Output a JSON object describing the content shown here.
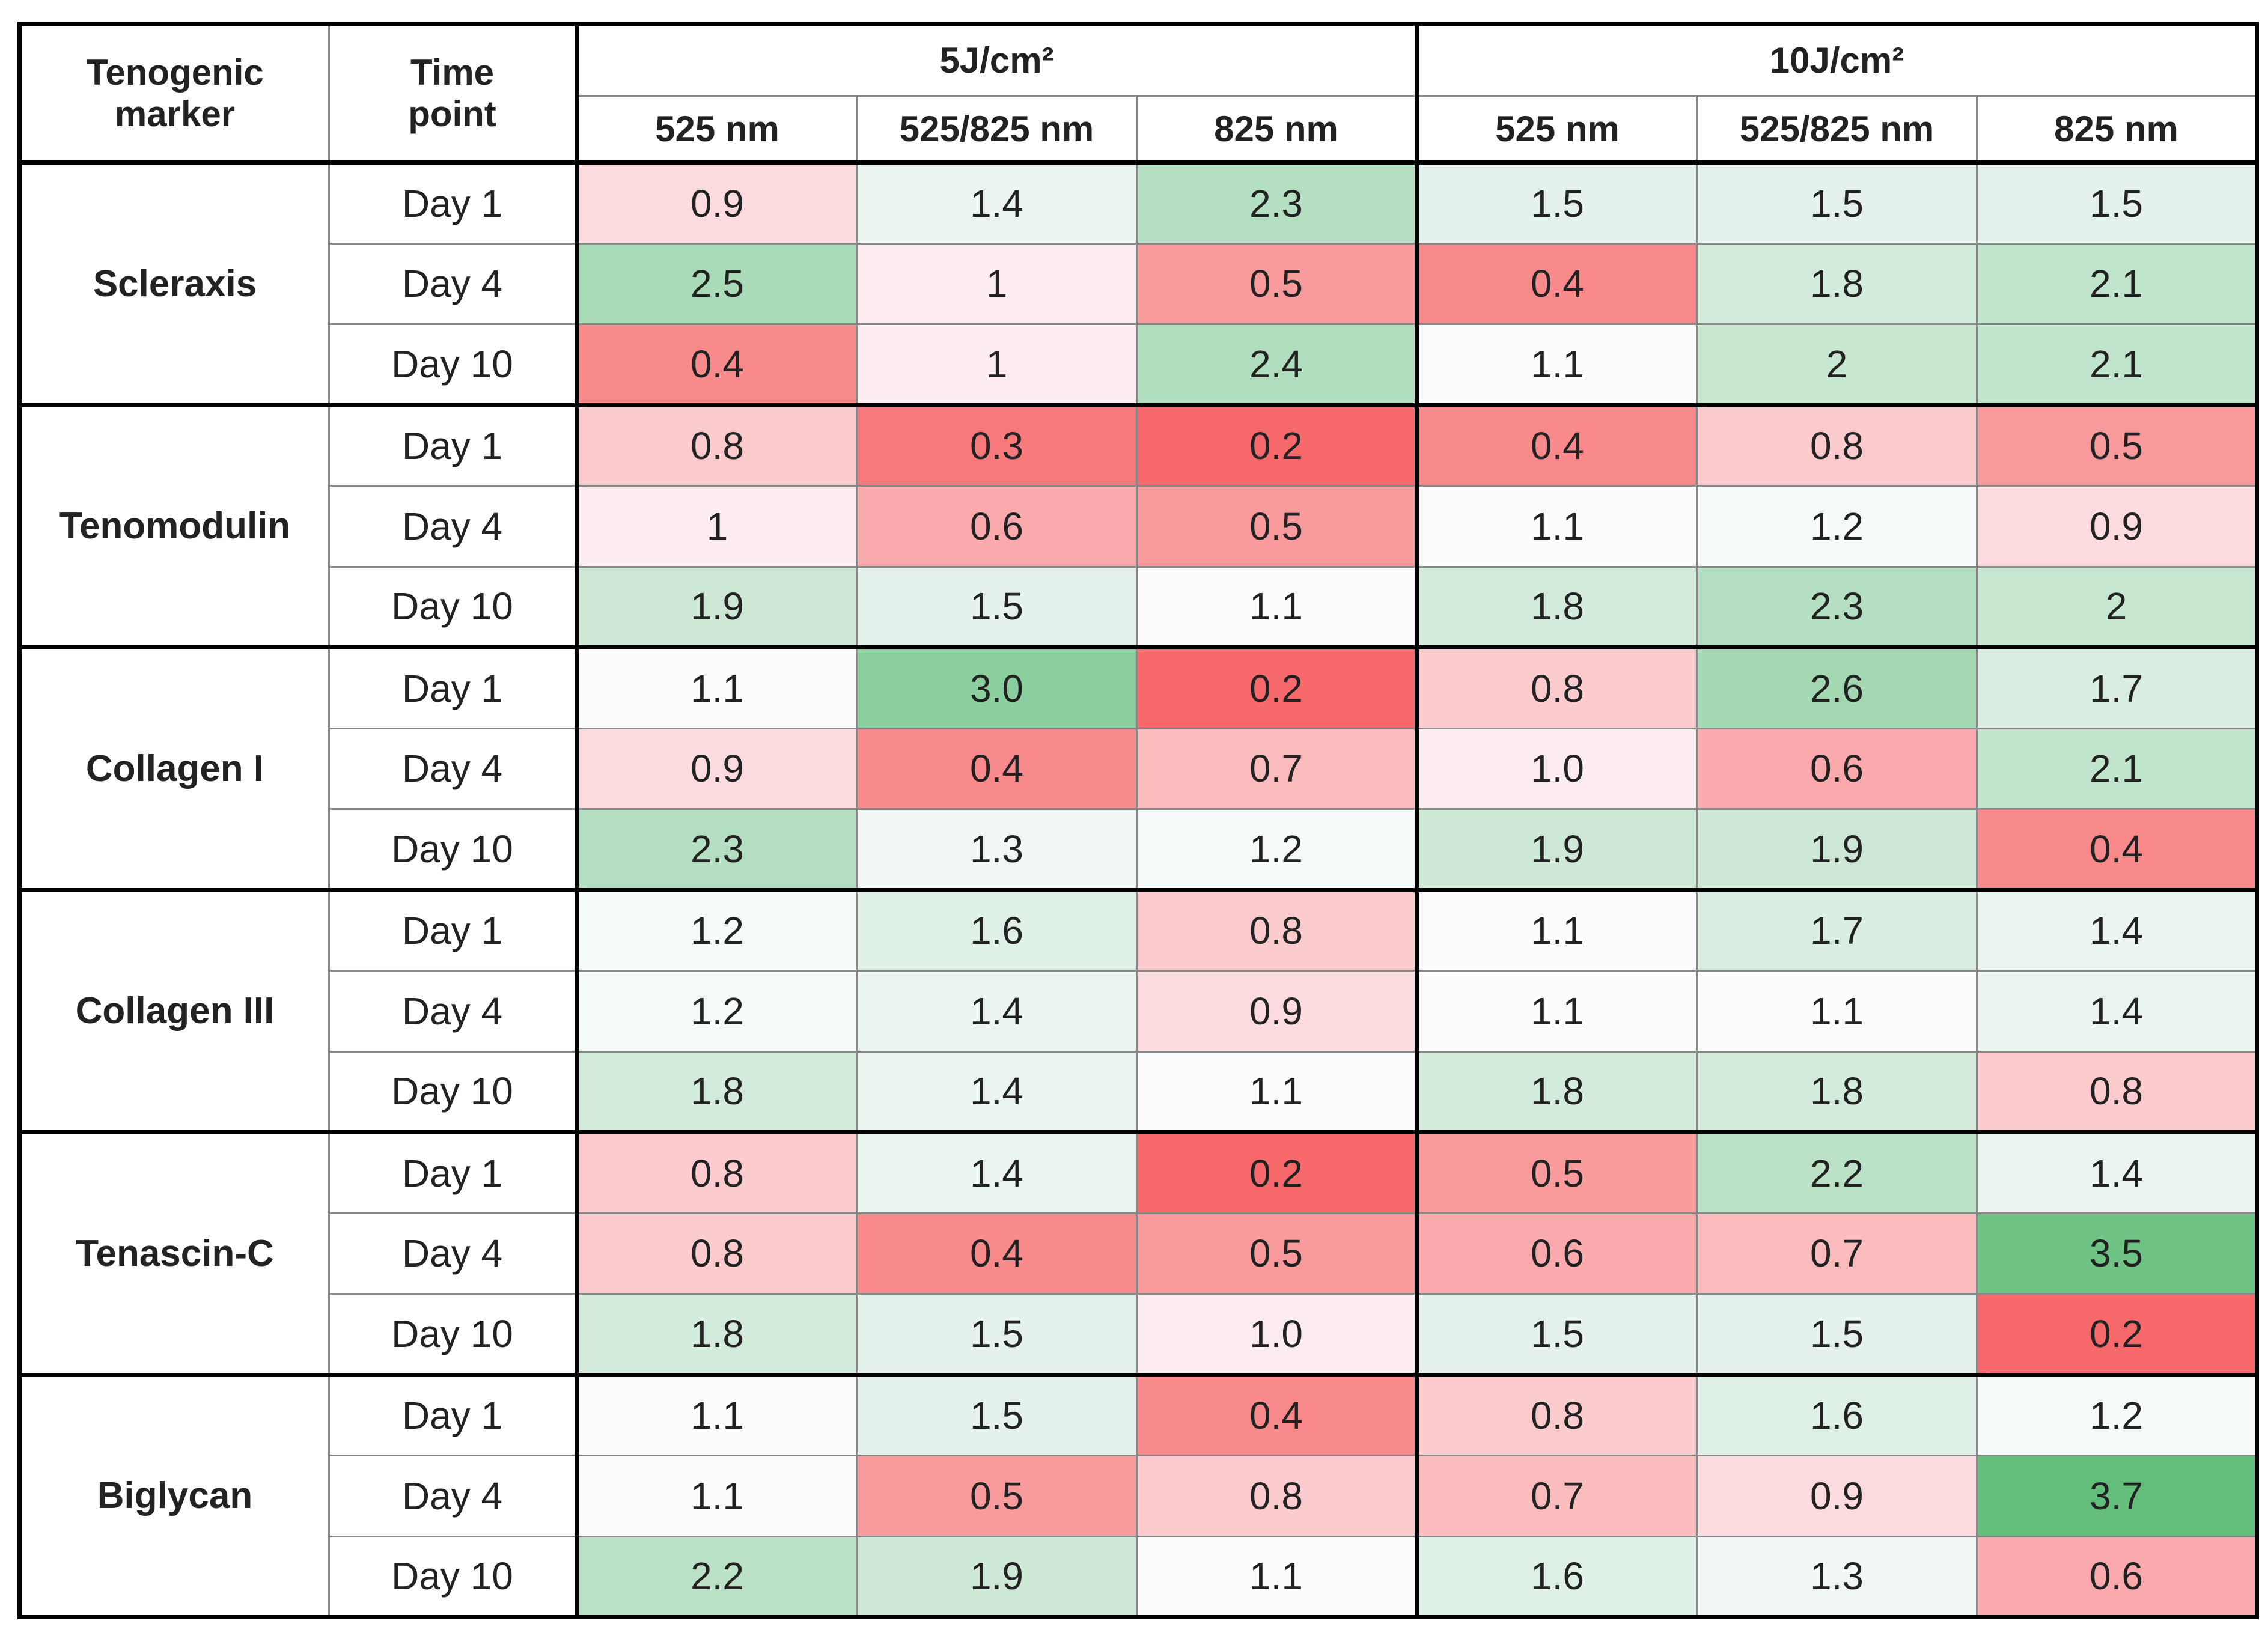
{
  "header": {
    "marker": "Tenogenic marker",
    "time": "Time point",
    "groups": [
      {
        "label": "5J/cm²",
        "subs": [
          "525 nm",
          "525/825 nm",
          "825 nm"
        ]
      },
      {
        "label": "10J/cm²",
        "subs": [
          "525 nm",
          "525/825 nm",
          "825 nm"
        ]
      }
    ]
  },
  "rows": [
    {
      "marker": "Scleraxis",
      "days": [
        {
          "time": "Day 1",
          "values": [
            "0.9",
            "1.4",
            "2.3",
            "1.5",
            "1.5",
            "1.5"
          ]
        },
        {
          "time": "Day 4",
          "values": [
            "2.5",
            "1",
            "0.5",
            "0.4",
            "1.8",
            "2.1"
          ]
        },
        {
          "time": "Day 10",
          "values": [
            "0.4",
            "1",
            "2.4",
            "1.1",
            "2",
            "2.1"
          ]
        }
      ]
    },
    {
      "marker": "Tenomodulin",
      "days": [
        {
          "time": "Day 1",
          "values": [
            "0.8",
            "0.3",
            "0.2",
            "0.4",
            "0.8",
            "0.5"
          ]
        },
        {
          "time": "Day 4",
          "values": [
            "1",
            "0.6",
            "0.5",
            "1.1",
            "1.2",
            "0.9"
          ]
        },
        {
          "time": "Day 10",
          "values": [
            "1.9",
            "1.5",
            "1.1",
            "1.8",
            "2.3",
            "2"
          ]
        }
      ]
    },
    {
      "marker": "Collagen I",
      "days": [
        {
          "time": "Day 1",
          "values": [
            "1.1",
            "3.0",
            "0.2",
            "0.8",
            "2.6",
            "1.7"
          ]
        },
        {
          "time": "Day 4",
          "values": [
            "0.9",
            "0.4",
            "0.7",
            "1.0",
            "0.6",
            "2.1"
          ]
        },
        {
          "time": "Day 10",
          "values": [
            "2.3",
            "1.3",
            "1.2",
            "1.9",
            "1.9",
            "0.4"
          ]
        }
      ]
    },
    {
      "marker": "Collagen III",
      "days": [
        {
          "time": "Day 1",
          "values": [
            "1.2",
            "1.6",
            "0.8",
            "1.1",
            "1.7",
            "1.4"
          ]
        },
        {
          "time": "Day 4",
          "values": [
            "1.2",
            "1.4",
            "0.9",
            "1.1",
            "1.1",
            "1.4"
          ]
        },
        {
          "time": "Day 10",
          "values": [
            "1.8",
            "1.4",
            "1.1",
            "1.8",
            "1.8",
            "0.8"
          ]
        }
      ]
    },
    {
      "marker": "Tenascin-C",
      "days": [
        {
          "time": "Day 1",
          "values": [
            "0.8",
            "1.4",
            "0.2",
            "0.5",
            "2.2",
            "1.4"
          ]
        },
        {
          "time": "Day 4",
          "values": [
            "0.8",
            "0.4",
            "0.5",
            "0.6",
            "0.7",
            "3.5"
          ]
        },
        {
          "time": "Day 10",
          "values": [
            "1.8",
            "1.5",
            "1.0",
            "1.5",
            "1.5",
            "0.2"
          ]
        }
      ]
    },
    {
      "marker": "Biglycan",
      "days": [
        {
          "time": "Day 1",
          "values": [
            "1.1",
            "1.5",
            "0.4",
            "0.8",
            "1.6",
            "1.2"
          ]
        },
        {
          "time": "Day 4",
          "values": [
            "1.1",
            "0.5",
            "0.8",
            "0.7",
            "0.9",
            "3.7"
          ]
        },
        {
          "time": "Day 10",
          "values": [
            "2.2",
            "1.9",
            "1.1",
            "1.6",
            "1.3",
            "0.6"
          ]
        }
      ]
    }
  ]
}
